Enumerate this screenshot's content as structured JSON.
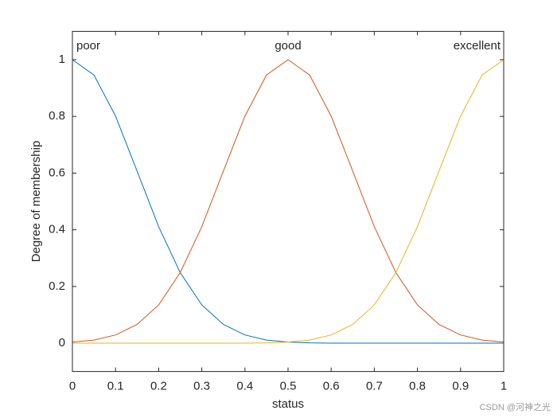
{
  "chart_data": {
    "type": "line",
    "xlabel": "status",
    "ylabel": "Degree of membership",
    "x": [
      0,
      0.05,
      0.1,
      0.15,
      0.2,
      0.25,
      0.3,
      0.35,
      0.4,
      0.45,
      0.5,
      0.55,
      0.6,
      0.65,
      0.7,
      0.75,
      0.8,
      0.85,
      0.9,
      0.95,
      1
    ],
    "series": [
      {
        "name": "poor",
        "color": "#0072BD",
        "values": [
          1,
          0.946,
          0.801,
          0.607,
          0.411,
          0.249,
          0.135,
          0.066,
          0.029,
          0.011,
          0.004,
          0.001,
          0,
          0,
          0,
          0,
          0,
          0,
          0,
          0,
          0
        ]
      },
      {
        "name": "good",
        "color": "#D95319",
        "values": [
          0.004,
          0.011,
          0.029,
          0.066,
          0.135,
          0.249,
          0.411,
          0.607,
          0.801,
          0.946,
          1,
          0.946,
          0.801,
          0.607,
          0.411,
          0.249,
          0.135,
          0.066,
          0.029,
          0.011,
          0.004
        ]
      },
      {
        "name": "excellent",
        "color": "#EDB120",
        "values": [
          0,
          0,
          0,
          0,
          0,
          0,
          0,
          0,
          0,
          0.001,
          0.004,
          0.011,
          0.029,
          0.066,
          0.135,
          0.249,
          0.411,
          0.607,
          0.801,
          0.946,
          1
        ]
      }
    ],
    "xlim": [
      0,
      1
    ],
    "xticks": [
      0,
      0.1,
      0.2,
      0.3,
      0.4,
      0.5,
      0.6,
      0.7,
      0.8,
      0.9,
      1
    ],
    "ylim": [
      -0.1,
      1.1
    ],
    "yticks": [
      0,
      0.2,
      0.4,
      0.6,
      0.8,
      1
    ],
    "watermark": "CSDN @河神之光"
  }
}
